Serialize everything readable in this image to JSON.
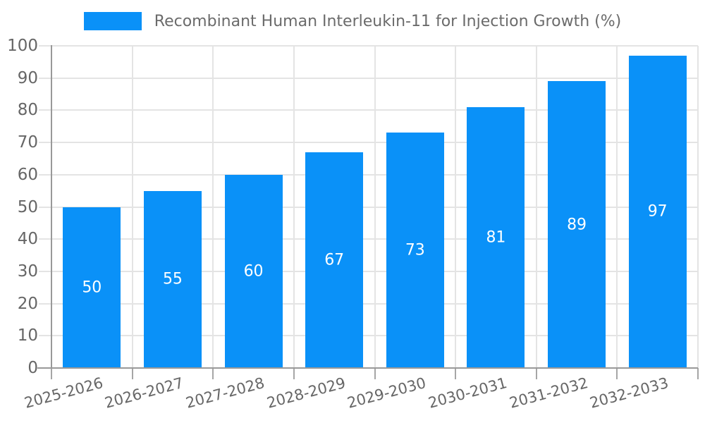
{
  "legend": {
    "label": "Recombinant Human Interleukin-11 for Injection Growth (%)"
  },
  "chart_data": {
    "type": "bar",
    "title": "Recombinant Human Interleukin-11 for Injection Growth (%)",
    "categories": [
      "2025-2026",
      "2026-2027",
      "2027-2028",
      "2028-2029",
      "2029-2030",
      "2030-2031",
      "2031-2032",
      "2032-2033"
    ],
    "values": [
      50,
      55,
      60,
      67,
      73,
      81,
      89,
      97
    ],
    "xlabel": "",
    "ylabel": "",
    "ylim": [
      0,
      100
    ],
    "ytick_step": 10,
    "yticks": [
      0,
      10,
      20,
      30,
      40,
      50,
      60,
      70,
      80,
      90,
      100
    ],
    "grid": true,
    "legend_position": "top-center",
    "value_labels": "inside-center",
    "x_label_rotation_deg": -15,
    "colors": {
      "bar": "#0a91f8",
      "grid": "#e4e4e4",
      "axis": "#999999",
      "tick": "#a6a6a6",
      "axis_label": "#666666",
      "legend_text": "#6b6b6b",
      "value_label": "#ffffff",
      "background": "#ffffff"
    }
  }
}
